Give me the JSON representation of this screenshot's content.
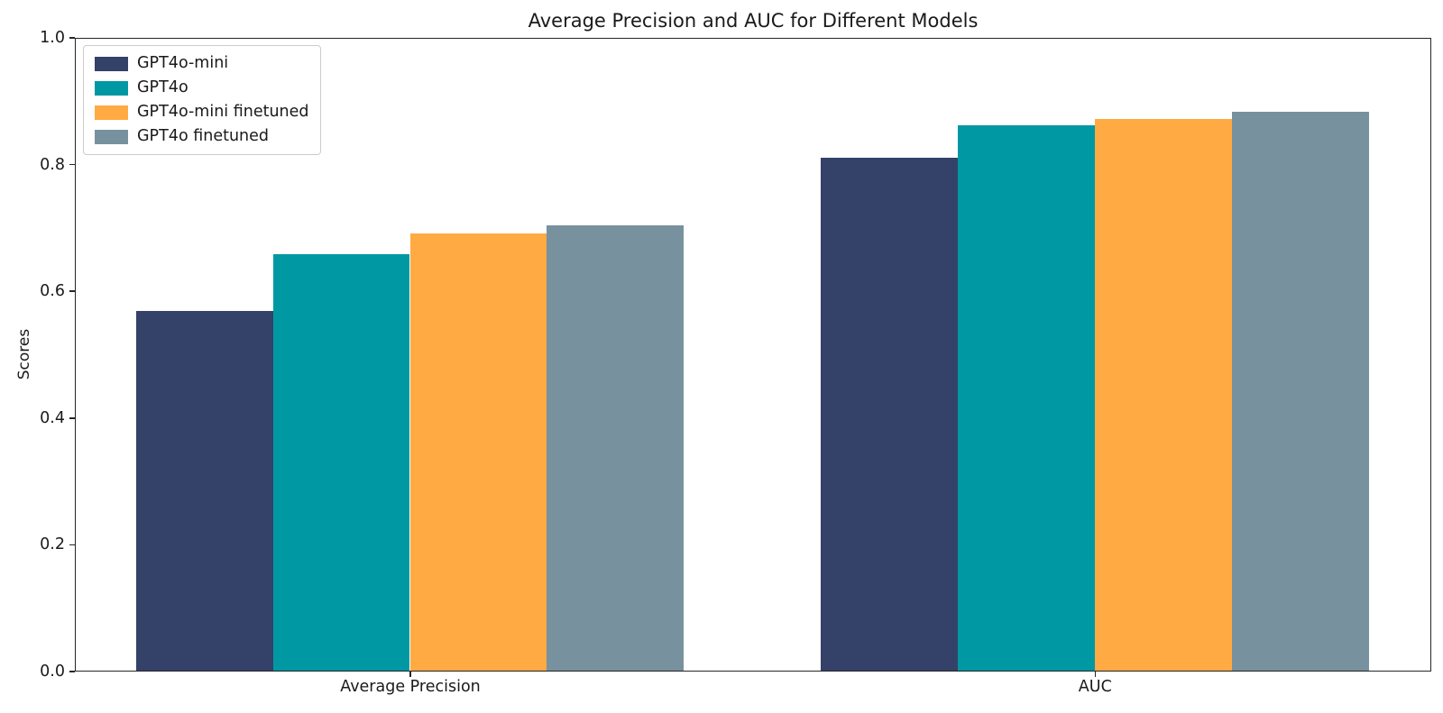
{
  "figure": {
    "background": "#ffffff",
    "text_color": "#1a1a1a"
  },
  "chart_data": {
    "type": "bar",
    "title": "Average Precision and AUC for Different Models",
    "xlabel": "",
    "ylabel": "Scores",
    "categories": [
      "Average Precision",
      "AUC"
    ],
    "series": [
      {
        "name": "GPT4o-mini",
        "color": "#344168",
        "values": [
          0.567,
          0.81
        ]
      },
      {
        "name": "GPT4o",
        "color": "#0098A3",
        "values": [
          0.657,
          0.861
        ]
      },
      {
        "name": "GPT4o-mini finetuned",
        "color": "#FFAA43",
        "values": [
          0.69,
          0.87
        ]
      },
      {
        "name": "GPT4o finetuned",
        "color": "#78919E",
        "values": [
          0.703,
          0.882
        ]
      }
    ],
    "ylim": [
      0.0,
      1.0
    ],
    "yticks": [
      0.0,
      0.2,
      0.4,
      0.6,
      0.8,
      1.0
    ],
    "ytick_labels": [
      "0.0",
      "0.2",
      "0.4",
      "0.6",
      "0.8",
      "1.0"
    ],
    "grid": false,
    "legend_position": "upper-left",
    "bar_width": 0.2,
    "bar_group_offsets": [
      -0.3,
      -0.1,
      0.1,
      0.3
    ]
  }
}
